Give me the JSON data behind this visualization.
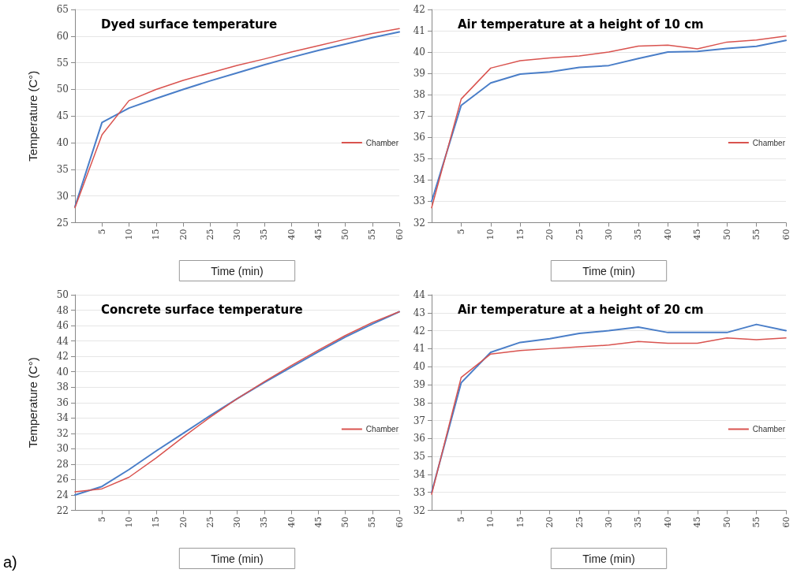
{
  "chart_data": [
    {
      "type": "line",
      "title": "Dyed surface temperature",
      "xlabel": "Time (min)",
      "ylabel": "Temperature (C°)",
      "x": [
        0,
        5,
        10,
        15,
        20,
        25,
        30,
        35,
        40,
        45,
        50,
        55,
        60
      ],
      "xlim": [
        0,
        60
      ],
      "xticks": [
        5,
        10,
        15,
        20,
        25,
        30,
        35,
        40,
        45,
        50,
        55,
        60
      ],
      "ylim": [
        25,
        65
      ],
      "yticks": [
        25,
        30,
        35,
        40,
        45,
        50,
        55,
        60,
        65
      ],
      "grid": "y",
      "legend": "right",
      "series": [
        {
          "color": "#4a7ec8",
          "values": [
            28,
            43.8,
            46.5,
            48.3,
            50,
            51.6,
            53.1,
            54.6,
            56,
            57.3,
            58.5,
            59.7,
            60.8
          ]
        },
        {
          "name": "Chamber",
          "color": "#d9534f",
          "values": [
            27.8,
            41.5,
            47.9,
            50,
            51.7,
            53.1,
            54.5,
            55.7,
            57,
            58.2,
            59.4,
            60.5,
            61.4
          ]
        }
      ]
    },
    {
      "type": "line",
      "title": "Air temperature at a height of 10 cm",
      "xlabel": "Time (min)",
      "x": [
        0,
        5,
        10,
        15,
        20,
        25,
        30,
        35,
        40,
        45,
        50,
        55,
        60
      ],
      "xlim": [
        0,
        60
      ],
      "xticks": [
        5,
        10,
        15,
        20,
        25,
        30,
        35,
        40,
        45,
        50,
        55,
        60
      ],
      "ylim": [
        32,
        42
      ],
      "yticks": [
        32,
        33,
        34,
        35,
        36,
        37,
        38,
        39,
        40,
        41,
        42
      ],
      "grid": "y",
      "legend": "right",
      "series": [
        {
          "color": "#4a7ec8",
          "values": [
            33,
            37.5,
            38.55,
            38.97,
            39.07,
            39.28,
            39.37,
            39.7,
            40,
            40.03,
            40.17,
            40.27,
            40.55
          ]
        },
        {
          "name": "Chamber",
          "color": "#d9534f",
          "values": [
            32.7,
            37.8,
            39.25,
            39.6,
            39.73,
            39.82,
            40,
            40.28,
            40.33,
            40.15,
            40.47,
            40.57,
            40.75
          ]
        }
      ]
    },
    {
      "type": "line",
      "title": "Concrete surface temperature",
      "xlabel": "Time (min)",
      "ylabel": "Temperature (C°)",
      "annotations": [
        "a)"
      ],
      "x": [
        0,
        5,
        10,
        15,
        20,
        25,
        30,
        35,
        40,
        45,
        50,
        55,
        60
      ],
      "xlim": [
        0,
        60
      ],
      "xticks": [
        5,
        10,
        15,
        20,
        25,
        30,
        35,
        40,
        45,
        50,
        55,
        60
      ],
      "ylim": [
        22,
        50
      ],
      "yticks": [
        22,
        24,
        26,
        28,
        30,
        32,
        34,
        36,
        38,
        40,
        42,
        44,
        46,
        48,
        50
      ],
      "grid": "y",
      "legend": "right",
      "series": [
        {
          "color": "#4a7ec8",
          "values": [
            24,
            25.1,
            27.3,
            29.7,
            32,
            34.3,
            36.5,
            38.6,
            40.6,
            42.6,
            44.5,
            46.2,
            47.8
          ]
        },
        {
          "name": "Chamber",
          "color": "#d9534f",
          "values": [
            24.4,
            24.8,
            26.3,
            28.8,
            31.5,
            34.1,
            36.5,
            38.7,
            40.8,
            42.8,
            44.7,
            46.4,
            47.8
          ]
        }
      ]
    },
    {
      "type": "line",
      "title": "Air temperature at a height of 20 cm",
      "xlabel": "Time (min)",
      "x": [
        0,
        5,
        10,
        15,
        20,
        25,
        30,
        35,
        40,
        45,
        50,
        55,
        60
      ],
      "xlim": [
        0,
        60
      ],
      "xticks": [
        5,
        10,
        15,
        20,
        25,
        30,
        35,
        40,
        45,
        50,
        55,
        60
      ],
      "ylim": [
        32,
        44
      ],
      "yticks": [
        32,
        33,
        34,
        35,
        36,
        37,
        38,
        39,
        40,
        41,
        42,
        43,
        44
      ],
      "grid": "y",
      "legend": "right",
      "series": [
        {
          "color": "#4a7ec8",
          "values": [
            33,
            39.1,
            40.8,
            41.35,
            41.55,
            41.85,
            42,
            42.2,
            41.9,
            41.9,
            41.9,
            42.35,
            42
          ]
        },
        {
          "name": "Chamber",
          "color": "#d9534f",
          "values": [
            32.9,
            39.4,
            40.7,
            40.9,
            41,
            41.1,
            41.2,
            41.4,
            41.3,
            41.3,
            41.6,
            41.5,
            41.6
          ]
        }
      ]
    }
  ]
}
